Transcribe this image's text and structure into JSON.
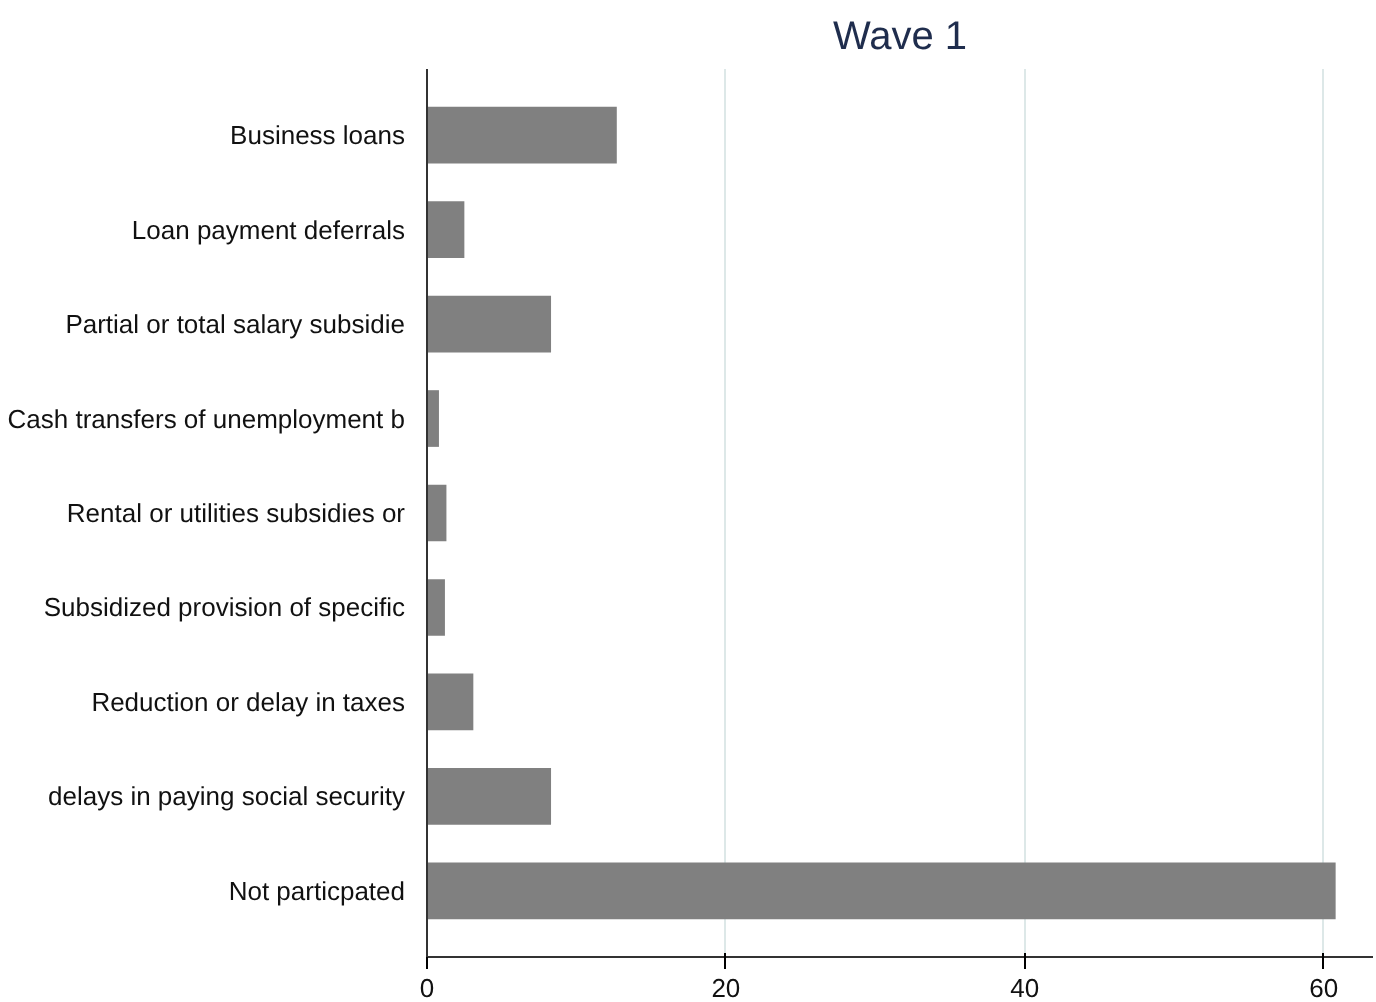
{
  "chart_data": {
    "type": "bar",
    "orientation": "horizontal",
    "title": "Wave 1",
    "categories": [
      "Business loans",
      "Loan payment deferrals",
      "Partial or total salary subsidie",
      "Cash transfers of unemployment b",
      "Rental or utilities subsidies or",
      "Subsidized provision of specific",
      "Reduction or delay in taxes",
      "delays in paying social security",
      "Not particpated"
    ],
    "values": [
      12.7,
      2.5,
      8.3,
      0.8,
      1.3,
      1.2,
      3.1,
      8.3,
      60.8
    ],
    "color": "#808080",
    "xlim": [
      0,
      63.3
    ],
    "xticks": [
      0,
      20,
      40,
      60
    ],
    "grid": "x"
  }
}
